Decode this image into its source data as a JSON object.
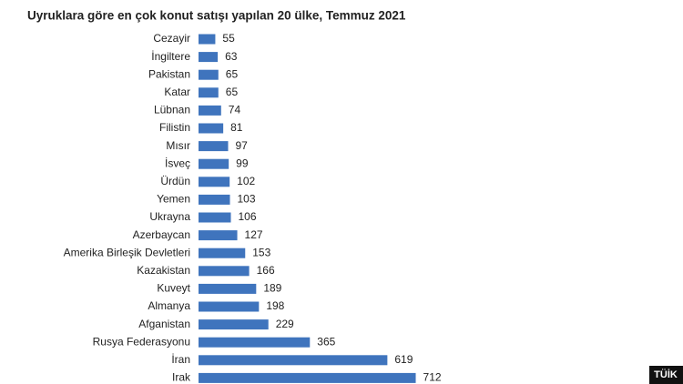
{
  "chart_data": {
    "type": "bar",
    "orientation": "horizontal",
    "title": "Uyruklara göre en çok konut satışı yapılan 20 ülke, Temmuz 2021",
    "categories": [
      "Cezayir",
      "İngiltere",
      "Pakistan",
      "Katar",
      "Lübnan",
      "Filistin",
      "Mısır",
      "İsveç",
      "Ürdün",
      "Yemen",
      "Ukrayna",
      "Azerbaycan",
      "Amerika Birleşik Devletleri",
      "Kazakistan",
      "Kuveyt",
      "Almanya",
      "Afganistan",
      "Rusya Federasyonu",
      "İran",
      "Irak"
    ],
    "values": [
      55,
      63,
      65,
      65,
      74,
      81,
      97,
      99,
      102,
      103,
      106,
      127,
      153,
      166,
      189,
      198,
      229,
      365,
      619,
      712
    ],
    "color": "#3f74bd"
  },
  "logo": "TÜİK"
}
